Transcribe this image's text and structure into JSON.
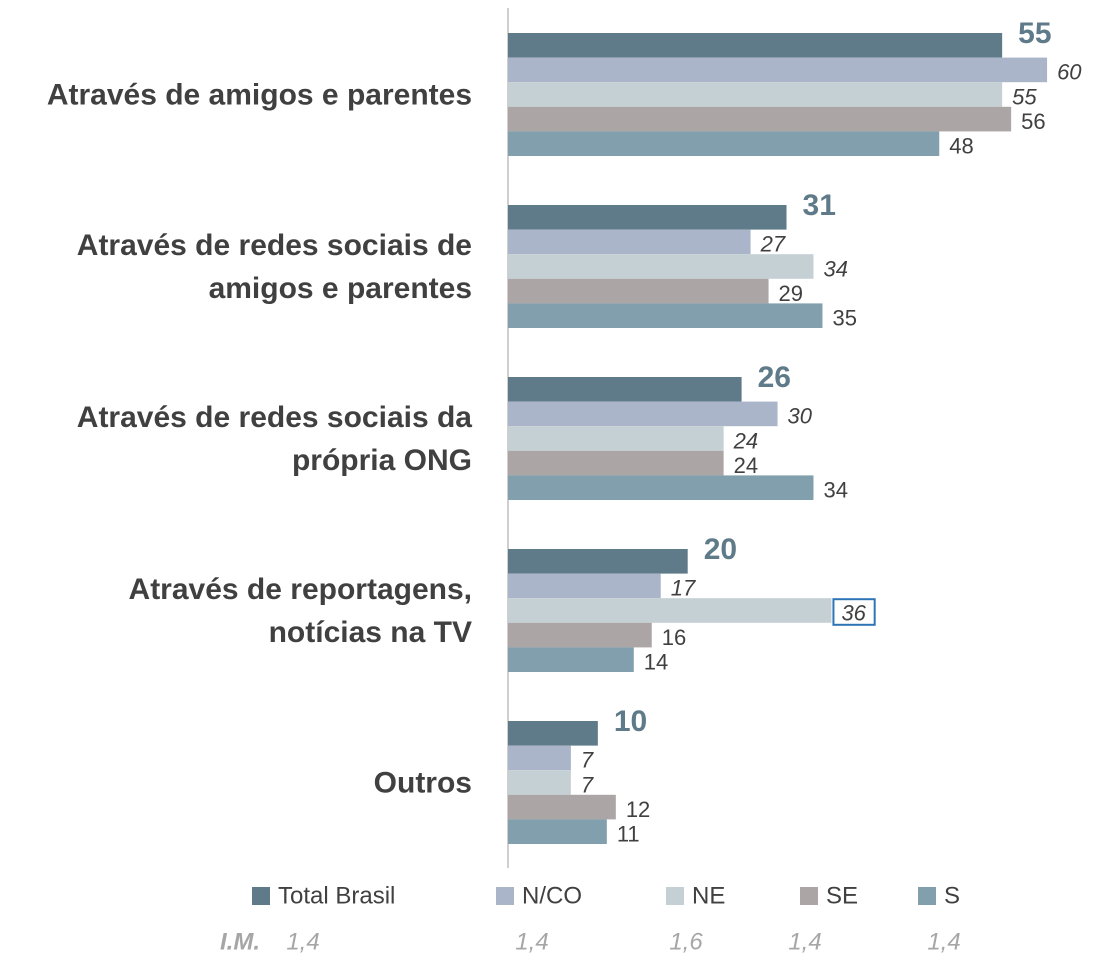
{
  "chart_data": {
    "type": "bar",
    "orientation": "horizontal",
    "categories": [
      "Através de amigos e parentes",
      "Através de redes sociais de\namigos e parentes",
      "Através de redes sociais da\nprópria ONG",
      "Através de reportagens,\nnotícias na TV",
      "Outros"
    ],
    "series": [
      {
        "name": "Total Brasil",
        "color": "#5f7a89",
        "label_style": "bold",
        "values": [
          55,
          31,
          26,
          20,
          10
        ]
      },
      {
        "name": "N/CO",
        "color": "#aab5c9",
        "label_style": "italic",
        "values": [
          60,
          27,
          30,
          17,
          7
        ]
      },
      {
        "name": "NE",
        "color": "#c5d0d5",
        "label_style": "italic",
        "values": [
          55,
          34,
          24,
          36,
          7
        ]
      },
      {
        "name": "SE",
        "color": "#aba6a5",
        "label_style": "normal",
        "values": [
          56,
          29,
          24,
          16,
          12
        ]
      },
      {
        "name": "S",
        "color": "#819fac",
        "label_style": "normal",
        "values": [
          48,
          35,
          34,
          14,
          11
        ]
      }
    ],
    "xlim": [
      0,
      65
    ],
    "highlight": {
      "series": 2,
      "index": 3,
      "color": "#2e75b6"
    },
    "legend": "bottom",
    "im": {
      "label": "I.M.",
      "values": [
        "1,4",
        "1,4",
        "1,6",
        "1,4",
        "1,4"
      ]
    }
  }
}
